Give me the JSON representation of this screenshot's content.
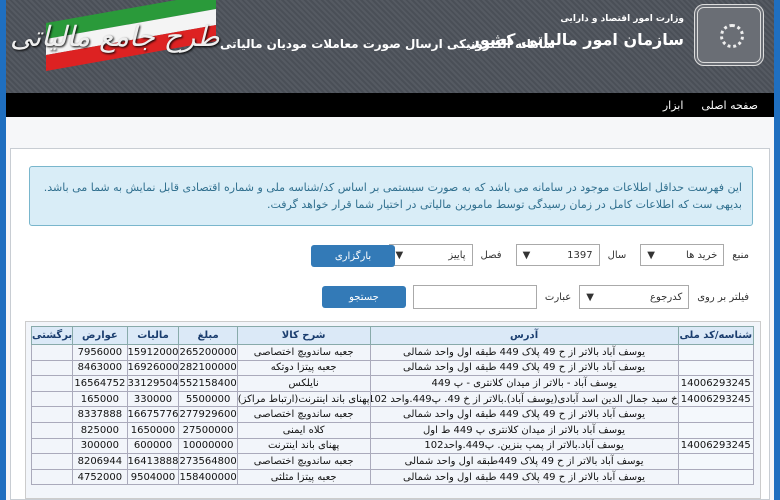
{
  "header": {
    "brand_title": "طرح جامع مالیاتی",
    "subtitle": "سامانه الکترونیکی ارسال صورت معاملات مودیان مالیاتی",
    "org_small": "وزارت امور اقتصاد و دارایی",
    "org_big": "سازمان امور مالیاتی کشور"
  },
  "nav": [
    "صفحه اصلی",
    "ابزار"
  ],
  "info": "این فهرست حداقل اطلاعات موجود در سامانه می باشد که به صورت سیستمی بر اساس کد/شناسه ملی و شماره اقتصادی قابل نمایش به شما می باشد. بدیهی ست که اطلاعات کامل در زمان رسیدگی توسط مامورین مالیاتی در اختیار شما قرار خواهد گرفت.",
  "form": {
    "source_label": "منبع",
    "source_value": "خرید ها",
    "year_label": "سال",
    "year_value": "1397",
    "season_label": "فصل",
    "season_value": "پاییز",
    "load_button": "بارگزاری",
    "filter_label": "فیلتر بر روی",
    "filter_value": "کدرجوع",
    "phrase_label": "عبارت",
    "phrase_value": "",
    "search_button": "جستجو"
  },
  "table": {
    "headers": [
      "شناسه/کد ملی",
      "آدرس",
      "شرح کالا",
      "مبلغ",
      "مالیات",
      "عوارض",
      "برگشتی"
    ],
    "rows": [
      [
        "",
        "یوسف آباد بالاتر از ح 49 پلاک 449 طبقه اول واحد شمالی",
        "جعبه ساندویچ اختصاصی",
        "265200000",
        "15912000",
        "7956000",
        ""
      ],
      [
        "",
        "یوسف آباد بالاتر از ح 49 پلاک 449 طبقه اول واحد شمالی",
        "جعبه پیتزا دوتکه",
        "282100000",
        "16926000",
        "8463000",
        ""
      ],
      [
        "14006293245",
        "یوسف آباد - بالاتر از میدان کلانتری - پ 449",
        "نایلکس",
        "552158400",
        "33129504",
        "16564752",
        ""
      ],
      [
        "14006293245",
        "خ سید جمال الدین اسد آبادی(یوسف آباد).بالاتر از خ 49. پ449.واحد 102",
        "پهنای باند اینترنت(ارتباط مراکز)",
        "5500000",
        "330000",
        "165000",
        ""
      ],
      [
        "",
        "یوسف آباد بالاتر از ح 49 پلاک 449 طبقه اول واحد شمالی",
        "جعبه ساندویچ اختصاصی",
        "277929600",
        "16675776",
        "8337888",
        ""
      ],
      [
        "",
        "یوسف آباد بالاتر از میدان کلانتری پ 449 ط اول",
        "کلاه ایمنی",
        "27500000",
        "1650000",
        "825000",
        ""
      ],
      [
        "14006293245",
        "یوسف آباد.بالاتر از پمپ بنزین. پ449.واحد102",
        "پهنای باند اینترنت",
        "10000000",
        "600000",
        "300000",
        ""
      ],
      [
        "",
        "یوسف آباد بالاتر از ح 49 پلاک 449طبقه اول واحد شمالی",
        "جعبه ساندویچ اختصاصی",
        "273564800",
        "16413888",
        "8206944",
        ""
      ],
      [
        "",
        "یوسف آباد بالاتر از ح 49 پلاک 449 طبقه اول واحد شمالی",
        "جعبه پیتزا مثلثی",
        "158400000",
        "9504000",
        "4752000",
        ""
      ]
    ]
  }
}
